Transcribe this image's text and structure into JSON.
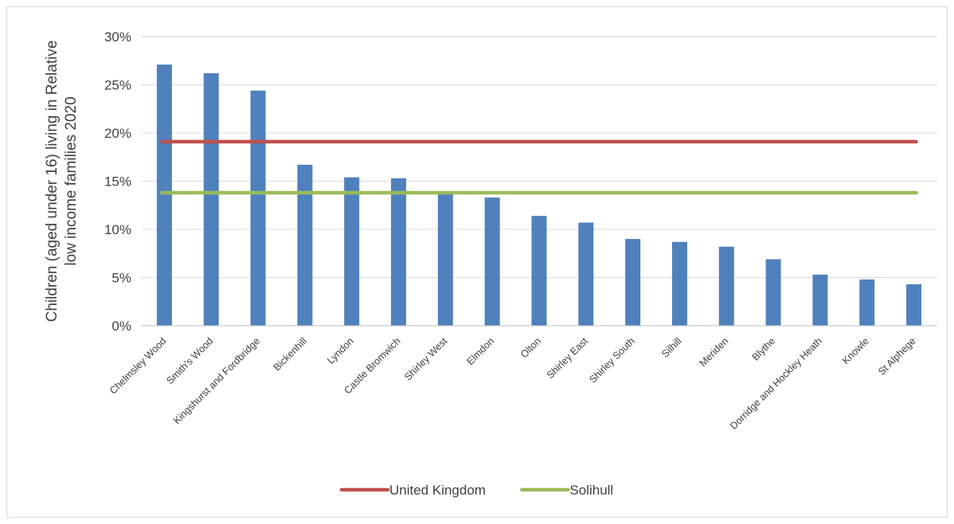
{
  "chart_data": {
    "type": "bar",
    "title": "",
    "xlabel": "",
    "ylabel": "Children (aged under 16) living in Relative low income families 2020",
    "ylim": [
      0,
      30
    ],
    "yticks": [
      "0%",
      "5%",
      "10%",
      "15%",
      "20%",
      "25%",
      "30%"
    ],
    "grid": true,
    "legend_position": "bottom",
    "categories": [
      "Chelmsley Wood",
      "Smith's Wood",
      "Kingshurst and Fordbridge",
      "Bickenhill",
      "Lyndon",
      "Castle Bromwich",
      "Shirley West",
      "Elmdon",
      "Olton",
      "Shirley East",
      "Shirley South",
      "Silhill",
      "Meriden",
      "Blythe",
      "Dorridge and Hockley Heath",
      "Knowle",
      "St Alphege"
    ],
    "values": [
      27.1,
      26.2,
      24.4,
      16.7,
      15.4,
      15.3,
      13.9,
      13.3,
      11.4,
      10.7,
      9.0,
      8.7,
      8.2,
      6.9,
      5.3,
      4.8,
      4.3
    ],
    "bar_color": "#4f81bd",
    "reference_lines": [
      {
        "name": "United Kingdom",
        "value": 19.1,
        "color": "#c0504d"
      },
      {
        "name": "Solihull",
        "value": 13.8,
        "color": "#9bbb59"
      }
    ]
  }
}
